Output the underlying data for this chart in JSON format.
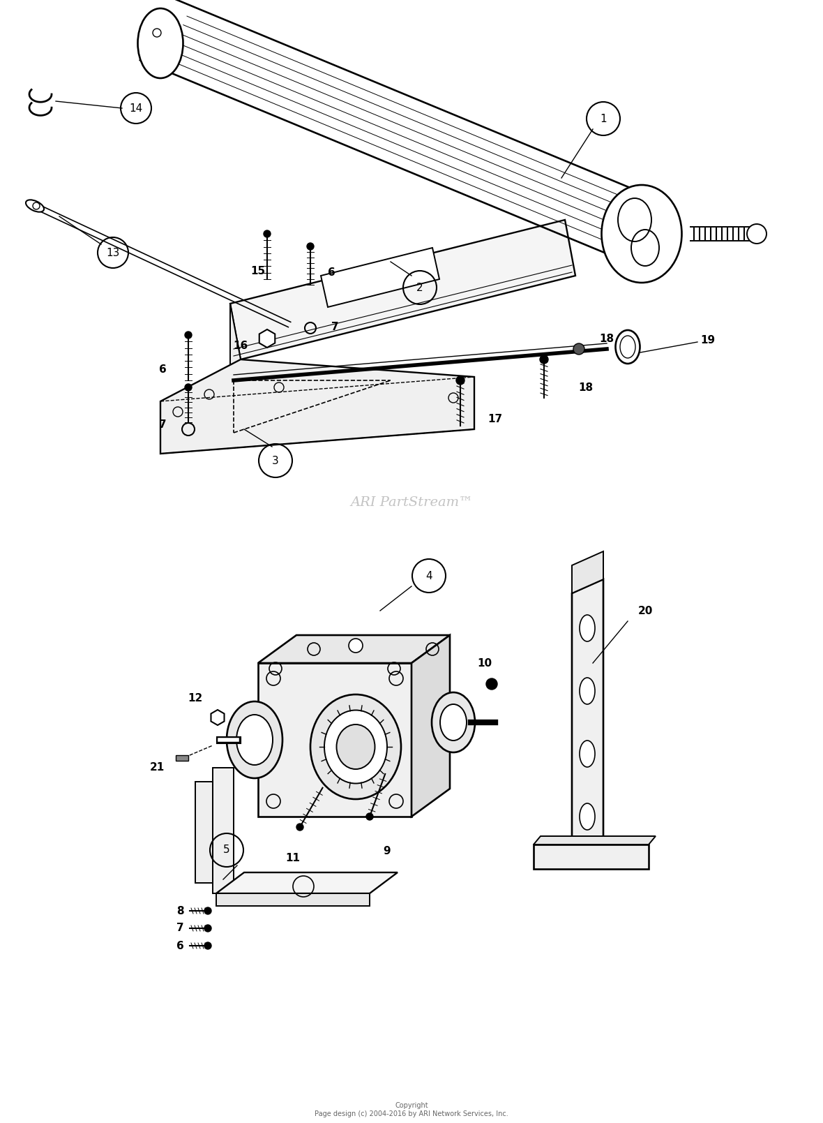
{
  "background_color": "#ffffff",
  "watermark": "ARI PartStream™",
  "copyright": "Copyright\nPage design (c) 2004-2016 by ARI Network Services, Inc.",
  "figsize": [
    11.8,
    16.09
  ],
  "dpi": 100,
  "lw": 1.4
}
